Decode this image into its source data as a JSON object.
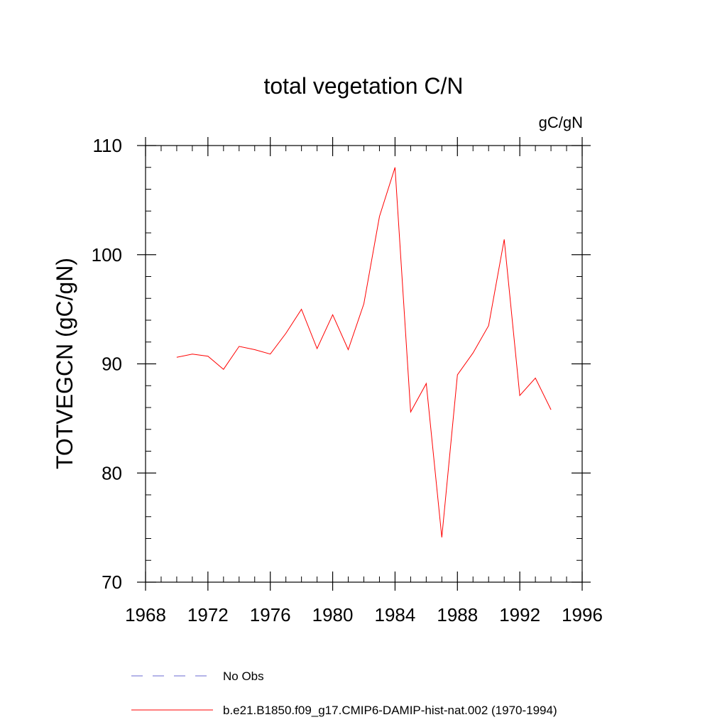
{
  "chart_data": {
    "type": "line",
    "title": "total vegetation C/N",
    "units_label": "gC/gN",
    "ylabel": "TOTVEGCN  (gC/gN)",
    "xlabel": "",
    "xlim": [
      1968,
      1996
    ],
    "ylim": [
      70,
      110
    ],
    "x_ticks": [
      1968,
      1972,
      1976,
      1980,
      1984,
      1988,
      1992,
      1996
    ],
    "x_tick_labels": [
      "1968",
      "1972",
      "1976",
      "1980",
      "1984",
      "1988",
      "1992",
      "1996"
    ],
    "x_minor_step": 1,
    "y_ticks": [
      70,
      80,
      90,
      100,
      110
    ],
    "y_tick_labels": [
      "70",
      "80",
      "90",
      "100",
      "110"
    ],
    "y_minor_step": 2,
    "grid": false,
    "legend_position": "bottom-left",
    "series": [
      {
        "name": "No Obs",
        "color": "#6a6ad0",
        "dash": "dashed",
        "x": [],
        "y": []
      },
      {
        "name": "b.e21.B1850.f09_g17.CMIP6-DAMIP-hist-nat.002 (1970-1994)",
        "color": "#ff0000",
        "dash": "solid",
        "x": [
          1970,
          1971,
          1972,
          1973,
          1974,
          1975,
          1976,
          1977,
          1978,
          1979,
          1980,
          1981,
          1982,
          1983,
          1984,
          1985,
          1986,
          1987,
          1988,
          1989,
          1990,
          1991,
          1992,
          1993,
          1994
        ],
        "y": [
          90.6,
          90.9,
          90.7,
          89.5,
          91.6,
          91.3,
          90.9,
          92.8,
          95.0,
          91.4,
          94.5,
          91.3,
          95.5,
          103.5,
          108.0,
          85.6,
          88.2,
          74.1,
          89.0,
          91.0,
          93.5,
          101.4,
          87.1,
          88.7,
          85.8
        ]
      }
    ]
  }
}
